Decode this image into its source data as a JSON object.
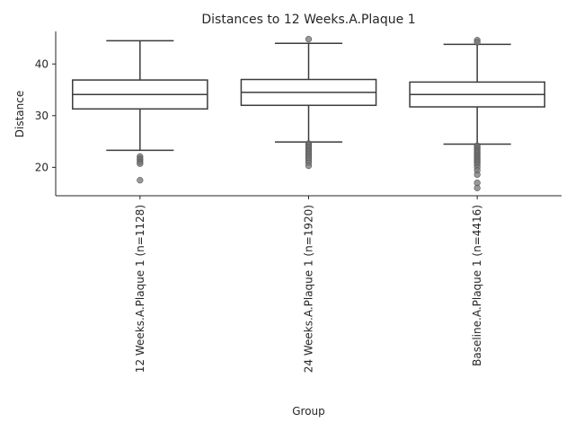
{
  "chart_data": {
    "type": "box",
    "title": "Distances to 12 Weeks.A.Plaque 1",
    "xlabel": "Group",
    "ylabel": "Distance",
    "ylim": [
      14.5,
      46.3
    ],
    "yticks": [
      20,
      30,
      40
    ],
    "grid": false,
    "categories": [
      "12 Weeks.A.Plaque 1 (n=1128)",
      "24 Weeks.A.Plaque 1 (n=1920)",
      "Baseline.A.Plaque 1 (n=4416)"
    ],
    "boxes": [
      {
        "whisker_low": 23.3,
        "q1": 31.3,
        "median": 34.1,
        "q3": 36.9,
        "whisker_high": 44.5,
        "fliers": [
          22.1,
          21.7,
          21.4,
          21.0,
          20.7,
          17.5
        ]
      },
      {
        "whisker_low": 24.9,
        "q1": 32.0,
        "median": 34.5,
        "q3": 37.0,
        "whisker_high": 44.0,
        "fliers": [
          44.8,
          24.6,
          24.3,
          24.0,
          23.7,
          23.3,
          23.0,
          22.6,
          22.2,
          21.8,
          21.4,
          20.9,
          20.3
        ]
      },
      {
        "whisker_low": 24.5,
        "q1": 31.7,
        "median": 34.1,
        "q3": 36.5,
        "whisker_high": 43.8,
        "fliers": [
          44.6,
          44.2,
          24.2,
          23.9,
          23.6,
          23.3,
          23.0,
          22.7,
          22.4,
          22.1,
          21.8,
          21.5,
          21.2,
          20.9,
          20.5,
          20.0,
          19.4,
          18.6,
          17.0,
          16.0
        ]
      }
    ]
  }
}
